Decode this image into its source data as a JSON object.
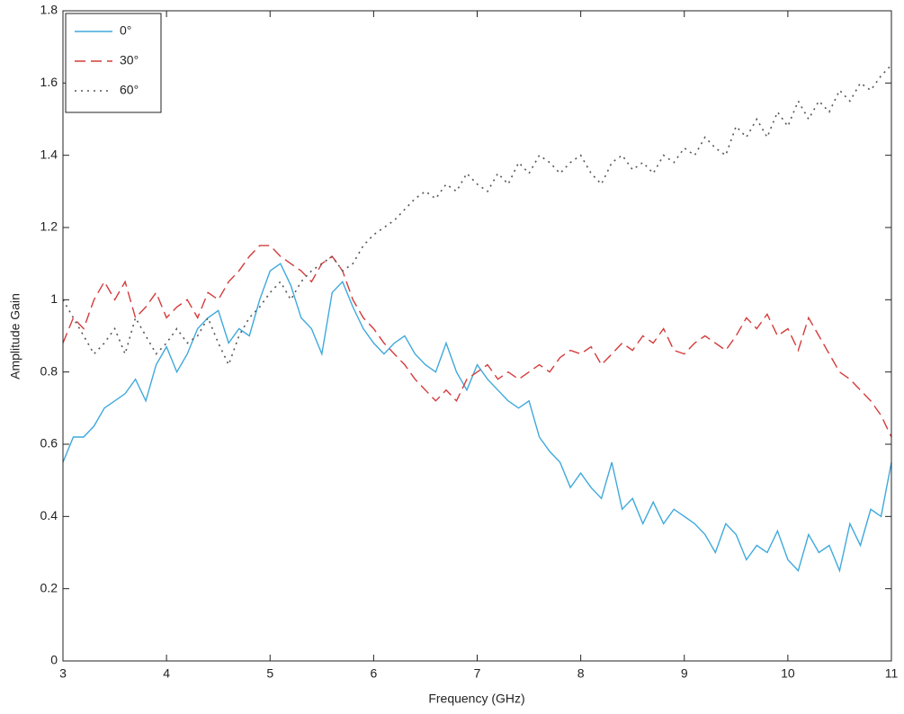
{
  "chart_data": {
    "type": "line",
    "xlabel": "Frequency (GHz)",
    "ylabel": "Amplitude Gain",
    "x": [
      3.0,
      3.1,
      3.2,
      3.3,
      3.4,
      3.5,
      3.6,
      3.7,
      3.8,
      3.9,
      4.0,
      4.1,
      4.2,
      4.3,
      4.4,
      4.5,
      4.6,
      4.7,
      4.8,
      4.9,
      5.0,
      5.1,
      5.2,
      5.3,
      5.4,
      5.5,
      5.6,
      5.7,
      5.8,
      5.9,
      6.0,
      6.1,
      6.2,
      6.3,
      6.4,
      6.5,
      6.6,
      6.7,
      6.8,
      6.9,
      7.0,
      7.1,
      7.2,
      7.3,
      7.4,
      7.5,
      7.6,
      7.7,
      7.8,
      7.9,
      8.0,
      8.1,
      8.2,
      8.3,
      8.4,
      8.5,
      8.6,
      8.7,
      8.8,
      8.9,
      9.0,
      9.1,
      9.2,
      9.3,
      9.4,
      9.5,
      9.6,
      9.7,
      9.8,
      9.9,
      10.0,
      10.1,
      10.2,
      10.3,
      10.4,
      10.5,
      10.6,
      10.7,
      10.8,
      10.9,
      11.0
    ],
    "series": [
      {
        "name": "0°",
        "color": "#3fa9dc",
        "dash": "solid",
        "values": [
          0.55,
          0.62,
          0.62,
          0.65,
          0.7,
          0.72,
          0.74,
          0.78,
          0.72,
          0.82,
          0.87,
          0.8,
          0.85,
          0.92,
          0.95,
          0.97,
          0.88,
          0.92,
          0.9,
          1.0,
          1.08,
          1.1,
          1.04,
          0.95,
          0.92,
          0.85,
          1.02,
          1.05,
          0.98,
          0.92,
          0.88,
          0.85,
          0.88,
          0.9,
          0.85,
          0.82,
          0.8,
          0.88,
          0.8,
          0.75,
          0.82,
          0.78,
          0.75,
          0.72,
          0.7,
          0.72,
          0.62,
          0.58,
          0.55,
          0.48,
          0.52,
          0.48,
          0.45,
          0.55,
          0.42,
          0.45,
          0.38,
          0.44,
          0.38,
          0.42,
          0.4,
          0.38,
          0.35,
          0.3,
          0.38,
          0.35,
          0.28,
          0.32,
          0.3,
          0.36,
          0.28,
          0.25,
          0.35,
          0.3,
          0.32,
          0.25,
          0.38,
          0.32,
          0.42,
          0.4,
          0.55
        ]
      },
      {
        "name": "30°",
        "color": "#d43b3b",
        "dash": "dashed",
        "values": [
          0.88,
          0.95,
          0.92,
          1.0,
          1.05,
          1.0,
          1.05,
          0.95,
          0.98,
          1.02,
          0.95,
          0.98,
          1.0,
          0.95,
          1.02,
          1.0,
          1.05,
          1.08,
          1.12,
          1.15,
          1.15,
          1.12,
          1.1,
          1.08,
          1.05,
          1.1,
          1.12,
          1.08,
          1.0,
          0.95,
          0.92,
          0.88,
          0.85,
          0.82,
          0.78,
          0.75,
          0.72,
          0.75,
          0.72,
          0.78,
          0.8,
          0.82,
          0.78,
          0.8,
          0.78,
          0.8,
          0.82,
          0.8,
          0.84,
          0.86,
          0.85,
          0.87,
          0.82,
          0.85,
          0.88,
          0.86,
          0.9,
          0.88,
          0.92,
          0.86,
          0.85,
          0.88,
          0.9,
          0.88,
          0.86,
          0.9,
          0.95,
          0.92,
          0.96,
          0.9,
          0.92,
          0.86,
          0.95,
          0.9,
          0.85,
          0.8,
          0.78,
          0.75,
          0.72,
          0.68,
          0.62
        ]
      },
      {
        "name": "60°",
        "color": "#555555",
        "dash": "dotted",
        "values": [
          1.0,
          0.95,
          0.9,
          0.85,
          0.88,
          0.92,
          0.85,
          0.95,
          0.9,
          0.85,
          0.88,
          0.92,
          0.88,
          0.9,
          0.95,
          0.88,
          0.82,
          0.9,
          0.95,
          0.98,
          1.02,
          1.05,
          1.0,
          1.05,
          1.08,
          1.1,
          1.12,
          1.08,
          1.1,
          1.15,
          1.18,
          1.2,
          1.22,
          1.25,
          1.28,
          1.3,
          1.28,
          1.32,
          1.3,
          1.35,
          1.32,
          1.3,
          1.35,
          1.32,
          1.38,
          1.35,
          1.4,
          1.38,
          1.35,
          1.38,
          1.4,
          1.35,
          1.32,
          1.38,
          1.4,
          1.36,
          1.38,
          1.35,
          1.4,
          1.38,
          1.42,
          1.4,
          1.45,
          1.42,
          1.4,
          1.48,
          1.45,
          1.5,
          1.45,
          1.52,
          1.48,
          1.55,
          1.5,
          1.55,
          1.52,
          1.58,
          1.55,
          1.6,
          1.58,
          1.62,
          1.65
        ]
      }
    ],
    "xlim": [
      3,
      11
    ],
    "xticks": [
      3,
      4,
      5,
      6,
      7,
      8,
      9,
      10,
      11
    ],
    "ylim": [
      0,
      1.8
    ],
    "yticks": [
      0,
      0.2,
      0.4,
      0.6,
      0.8,
      1,
      1.2,
      1.4,
      1.6,
      1.8
    ],
    "grid": false,
    "legend": "upper left"
  }
}
